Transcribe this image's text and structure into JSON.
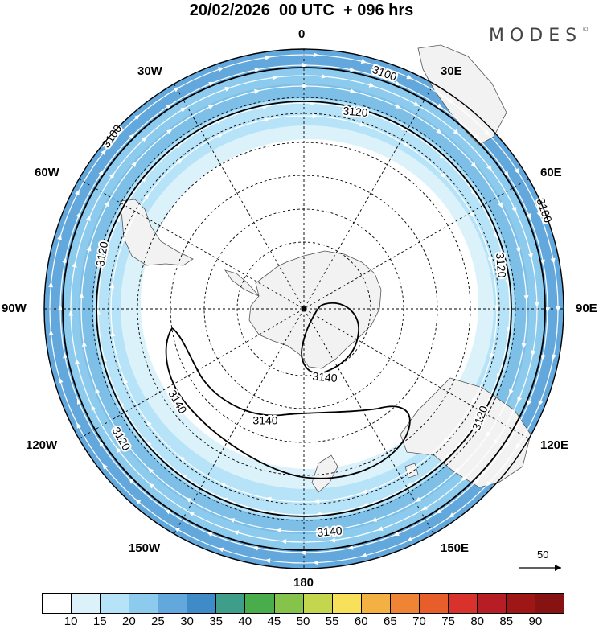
{
  "title": "20/02/2026  00 UTC  + 096 hrs",
  "logo": "MODES",
  "logo_mark": "©",
  "lon_labels": {
    "n": "0",
    "s": "180",
    "e": "90E",
    "w": "90W",
    "ne30": "30E",
    "ne60": "60E",
    "se120": "120E",
    "se150": "150E",
    "nw30": "30W",
    "nw60": "60W",
    "sw120": "120W",
    "sw150": "150W"
  },
  "contour_labels": [
    "3100",
    "3100",
    "3100",
    "3120",
    "3120",
    "3120",
    "3120",
    "3120",
    "3140",
    "3140",
    "3140",
    "3140"
  ],
  "reference_vector": "50",
  "colorbar": {
    "labels": [
      "10",
      "15",
      "20",
      "25",
      "30",
      "35",
      "40",
      "45",
      "50",
      "55",
      "60",
      "65",
      "70",
      "75",
      "80",
      "85",
      "90"
    ],
    "colors": [
      "#ffffff",
      "#dcf2fb",
      "#b6e3f7",
      "#8ccbed",
      "#62a8dc",
      "#3f8bc8",
      "#3f9e8a",
      "#4aad4c",
      "#86c34b",
      "#c4d64e",
      "#f7e05a",
      "#f3b143",
      "#ee8434",
      "#e85e2b",
      "#d9312b",
      "#b71d25",
      "#9e1616",
      "#861212"
    ]
  },
  "colors": {
    "land": "#f2f2f2",
    "coast": "#555555",
    "contour": "#000000",
    "vector": "#ffffff"
  }
}
